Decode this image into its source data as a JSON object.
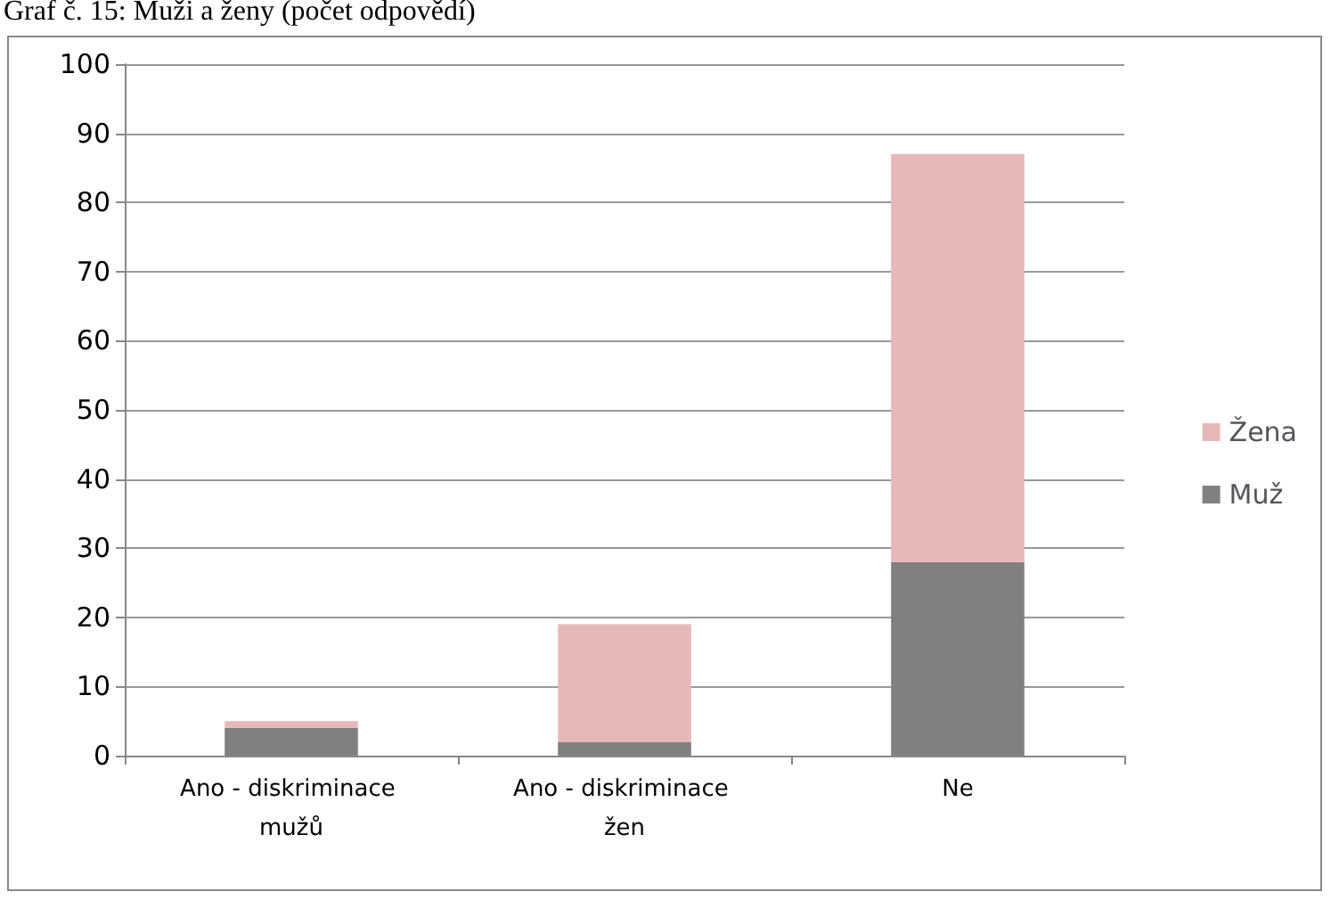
{
  "chart_data": {
    "type": "bar",
    "title": "Graf č. 15: Muži a ženy (počet odpovědí)",
    "categories": [
      "Ano - diskriminace mužů",
      "Ano - diskriminace žen",
      "Ne"
    ],
    "series": [
      {
        "name": "Muž",
        "color": "#808080",
        "values": [
          4,
          2,
          28
        ]
      },
      {
        "name": "Žena",
        "color": "#e6b8b7",
        "values": [
          1,
          17,
          59
        ]
      }
    ],
    "stacked": true,
    "ylim": [
      0,
      100
    ],
    "yticks": [
      0,
      10,
      20,
      30,
      40,
      50,
      60,
      70,
      80,
      90,
      100
    ],
    "grid": "y",
    "legend": "right"
  }
}
